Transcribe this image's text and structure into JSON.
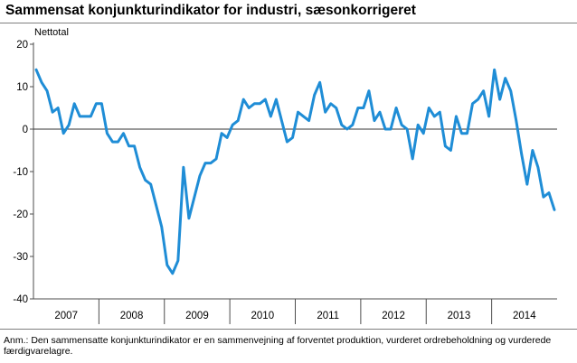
{
  "title": "Sammensat konjunkturindikator for industri, sæsonkorrigeret",
  "note": "Anm.: Den sammensatte konjunkturindikator er en sammenvejning af forventet produktion, vurderet ordrebeholdning og vurderede færdigvarelagre.",
  "chart_data": {
    "type": "line",
    "title": "Sammensat konjunkturindikator for industri, sæsonkorrigeret",
    "ylabel": "Nettotal",
    "xlabel": "",
    "ylim": [
      -40,
      20
    ],
    "yticks": [
      20,
      10,
      0,
      -10,
      -20,
      -30,
      -40
    ],
    "year_labels": [
      "2007",
      "2008",
      "2009",
      "2010",
      "2011",
      "2012",
      "2013",
      "2014"
    ],
    "x_start": "2007-01",
    "x_end": "2014-12",
    "grid": false,
    "zero_line": true,
    "series_color": "#1f8dd6",
    "series": [
      {
        "values": [
          14,
          11,
          9,
          4,
          5,
          -1,
          1,
          6,
          3,
          3,
          3,
          6,
          6,
          -1,
          -3,
          -3,
          -1,
          -4,
          -4,
          -9,
          -12,
          -13,
          -18,
          -23,
          -32,
          -34,
          -31,
          -9,
          -21,
          -16,
          -11,
          -8,
          -8,
          -7,
          -1,
          -2,
          1,
          2,
          7,
          5,
          6,
          6,
          7,
          3,
          7,
          2,
          -3,
          -2,
          4,
          3,
          2,
          8,
          11,
          4,
          6,
          5,
          1,
          0,
          1,
          5,
          5,
          9,
          2,
          4,
          0,
          0,
          5,
          1,
          0,
          -7,
          1,
          -1,
          5,
          3,
          4,
          -4,
          -5,
          3,
          -1,
          -1,
          6,
          7,
          9,
          3,
          14,
          7,
          12,
          9,
          2,
          -6,
          -13,
          -5,
          -9,
          -16,
          -15,
          -19
        ]
      }
    ]
  }
}
